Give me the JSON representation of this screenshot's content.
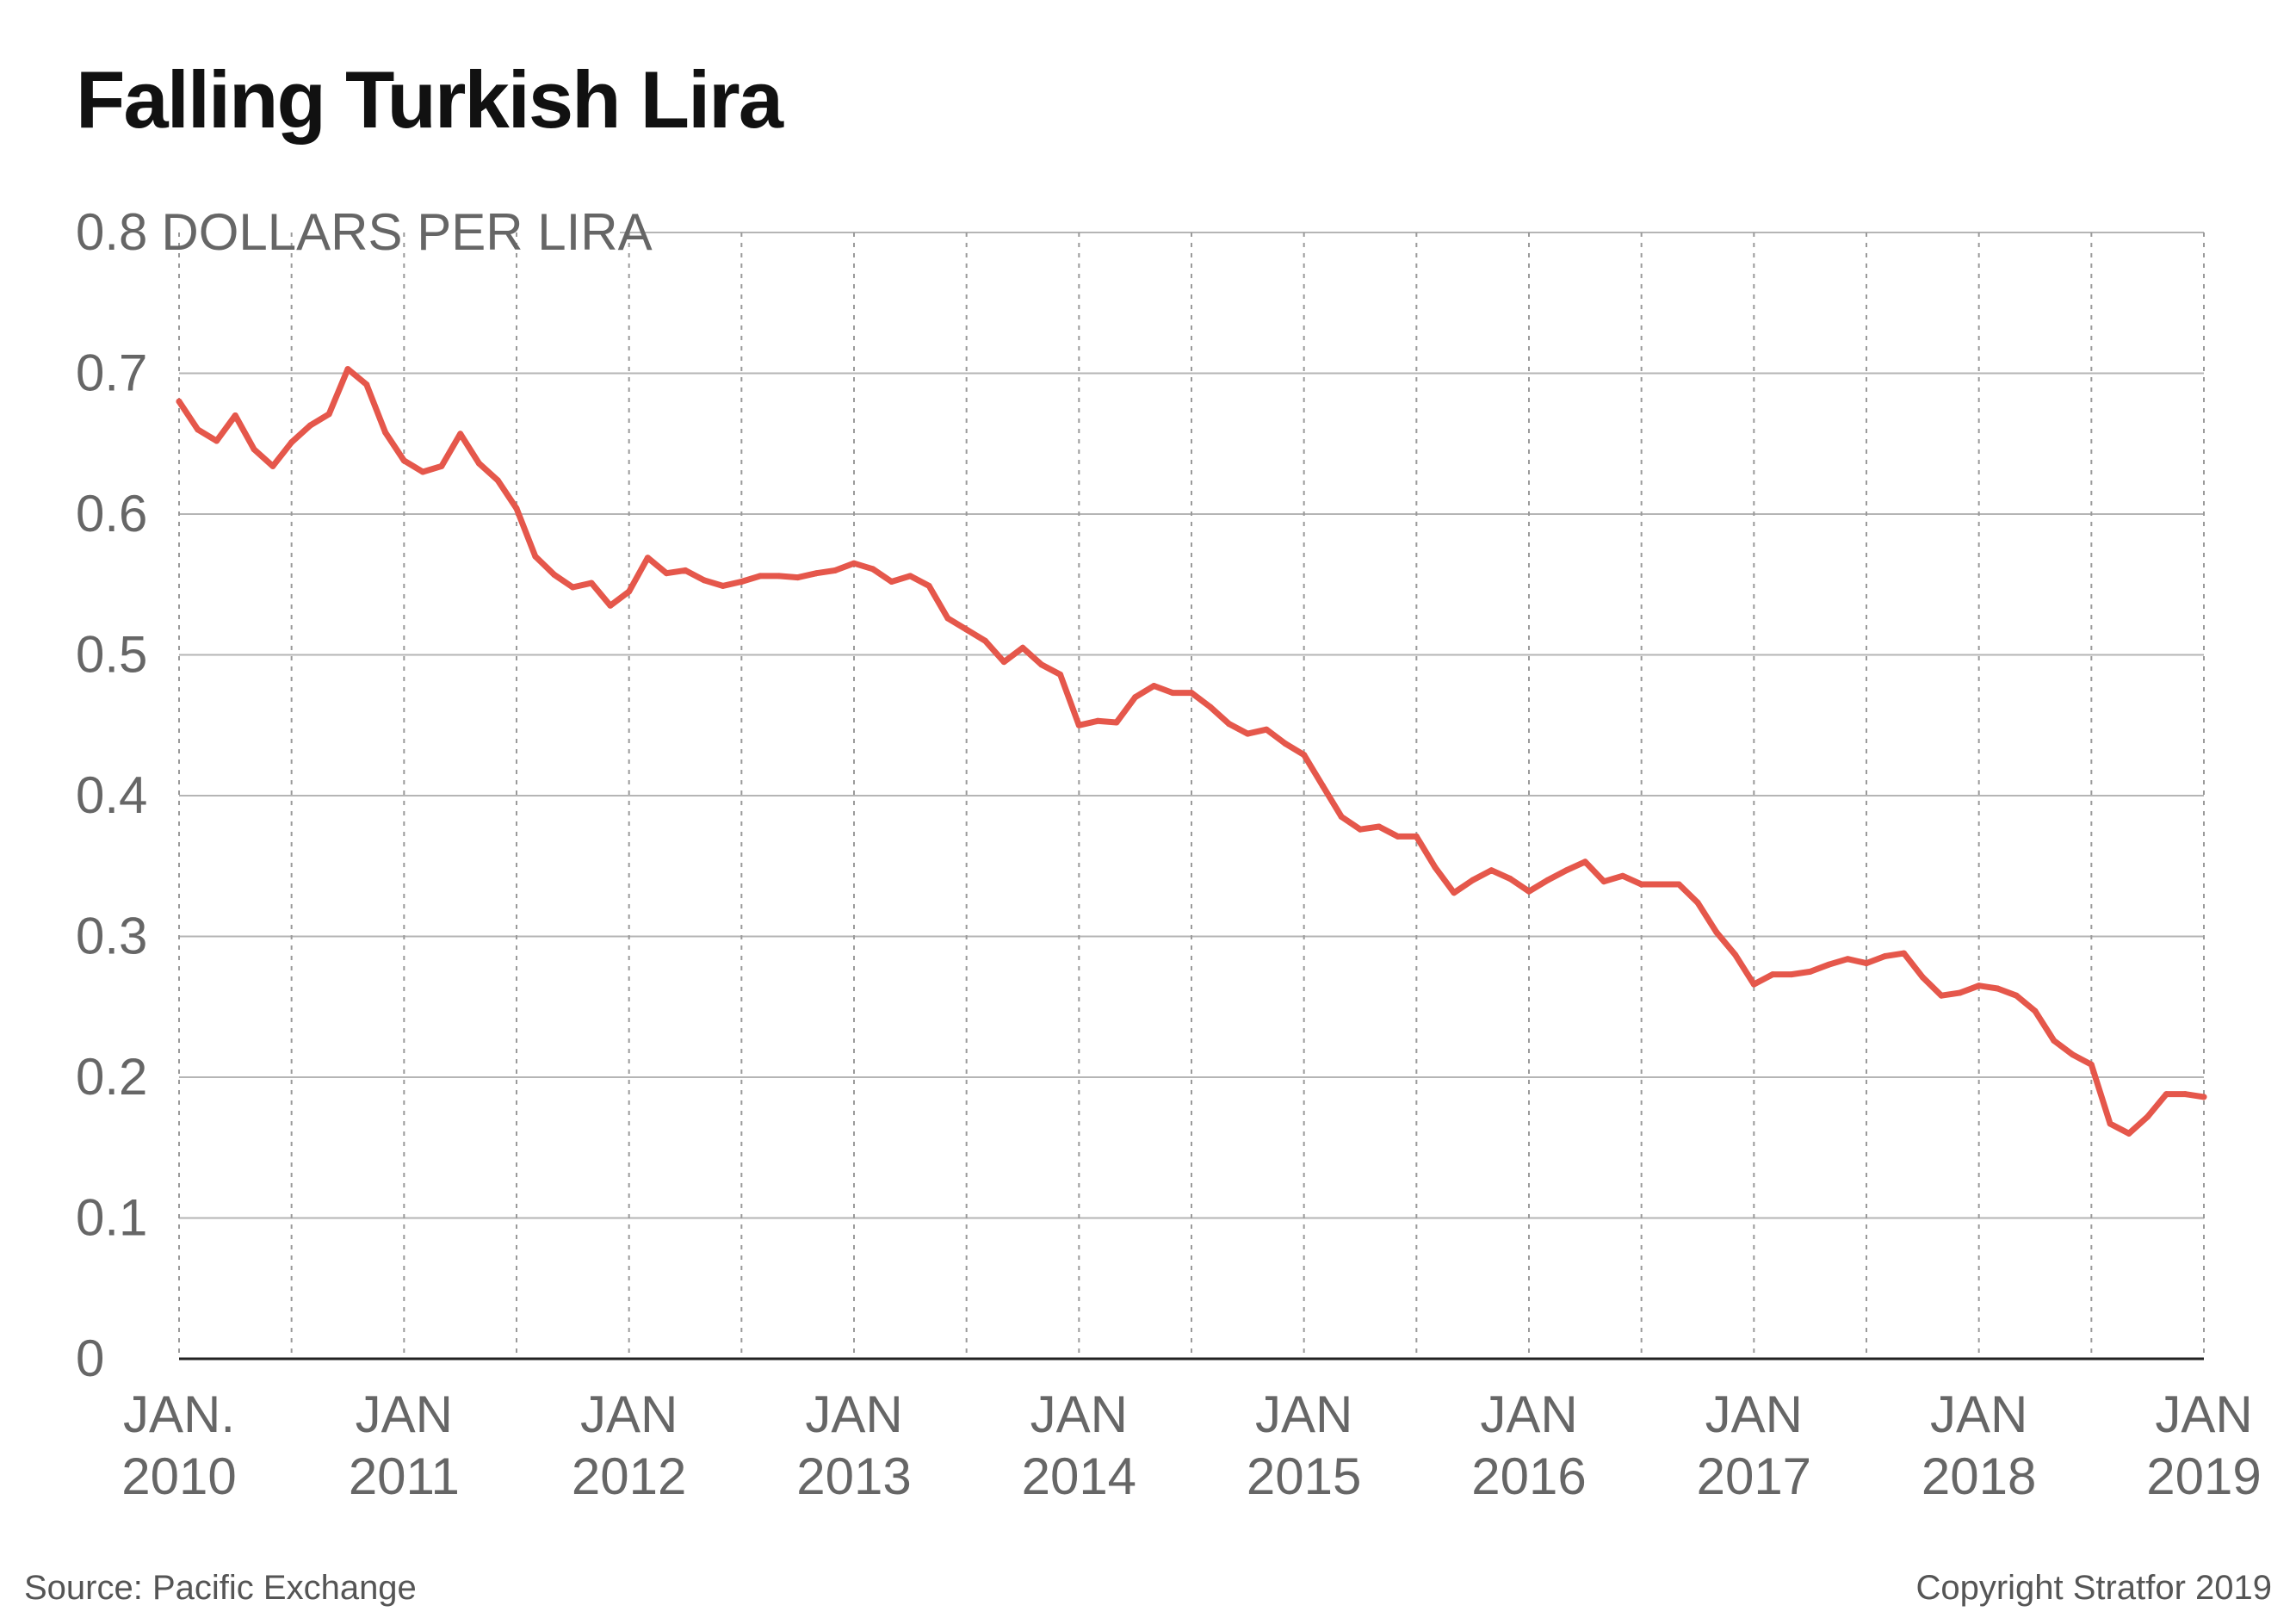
{
  "chart_data": {
    "type": "line",
    "title": "Falling Turkish Lira",
    "y_unit_label": "DOLLARS PER LIRA",
    "ylim": [
      0,
      0.8
    ],
    "yticks": [
      0,
      0.1,
      0.2,
      0.3,
      0.4,
      0.5,
      0.6,
      0.7,
      0.8
    ],
    "ytick_labels": [
      "0",
      "0.1",
      "0.2",
      "0.3",
      "0.4",
      "0.5",
      "0.6",
      "0.7",
      "0.8"
    ],
    "xlim": [
      "2010-01",
      "2019-01"
    ],
    "x_major_labels": [
      {
        "date": "2010-01",
        "line1": "JAN.",
        "line2": "2010"
      },
      {
        "date": "2011-01",
        "line1": "JAN",
        "line2": "2011"
      },
      {
        "date": "2012-01",
        "line1": "JAN",
        "line2": "2012"
      },
      {
        "date": "2013-01",
        "line1": "JAN",
        "line2": "2013"
      },
      {
        "date": "2014-01",
        "line1": "JAN",
        "line2": "2014"
      },
      {
        "date": "2015-01",
        "line1": "JAN",
        "line2": "2015"
      },
      {
        "date": "2016-01",
        "line1": "JAN",
        "line2": "2016"
      },
      {
        "date": "2017-01",
        "line1": "JAN",
        "line2": "2017"
      },
      {
        "date": "2018-01",
        "line1": "JAN",
        "line2": "2018"
      },
      {
        "date": "2019-01",
        "line1": "JAN",
        "line2": "2019"
      }
    ],
    "x_minor_gridlines": [
      "2010-07",
      "2011-07",
      "2012-07",
      "2013-07",
      "2014-07",
      "2015-07",
      "2016-07",
      "2017-07",
      "2018-07"
    ],
    "grid": {
      "horizontal": true,
      "vertical": "dotted"
    },
    "series": [
      {
        "color": "#e5574b",
        "x": [
          "2010-01",
          "2010-02",
          "2010-03",
          "2010-04",
          "2010-05",
          "2010-06",
          "2010-07",
          "2010-08",
          "2010-09",
          "2010-10",
          "2010-11",
          "2010-12",
          "2011-01",
          "2011-02",
          "2011-03",
          "2011-04",
          "2011-05",
          "2011-06",
          "2011-07",
          "2011-08",
          "2011-09",
          "2011-10",
          "2011-11",
          "2011-12",
          "2012-01",
          "2012-02",
          "2012-03",
          "2012-04",
          "2012-05",
          "2012-06",
          "2012-07",
          "2012-08",
          "2012-09",
          "2012-10",
          "2012-11",
          "2012-12",
          "2013-01",
          "2013-02",
          "2013-03",
          "2013-04",
          "2013-05",
          "2013-06",
          "2013-07",
          "2013-08",
          "2013-09",
          "2013-10",
          "2013-11",
          "2013-12",
          "2014-01",
          "2014-02",
          "2014-03",
          "2014-04",
          "2014-05",
          "2014-06",
          "2014-07",
          "2014-08",
          "2014-09",
          "2014-10",
          "2014-11",
          "2014-12",
          "2015-01",
          "2015-02",
          "2015-03",
          "2015-04",
          "2015-05",
          "2015-06",
          "2015-07",
          "2015-08",
          "2015-09",
          "2015-10",
          "2015-11",
          "2015-12",
          "2016-01",
          "2016-02",
          "2016-03",
          "2016-04",
          "2016-05",
          "2016-06",
          "2016-07",
          "2016-08",
          "2016-09",
          "2016-10",
          "2016-11",
          "2016-12",
          "2017-01",
          "2017-02",
          "2017-03",
          "2017-04",
          "2017-05",
          "2017-06",
          "2017-07",
          "2017-08",
          "2017-09",
          "2017-10",
          "2017-11",
          "2017-12",
          "2018-01",
          "2018-02",
          "2018-03",
          "2018-04",
          "2018-05",
          "2018-06",
          "2018-07",
          "2018-08",
          "2018-09",
          "2018-10",
          "2018-11",
          "2018-12",
          "2019-01"
        ],
        "values": [
          0.68,
          0.66,
          0.652,
          0.67,
          0.646,
          0.634,
          0.651,
          0.663,
          0.671,
          0.703,
          0.692,
          0.658,
          0.638,
          0.63,
          0.634,
          0.657,
          0.636,
          0.624,
          0.604,
          0.57,
          0.557,
          0.548,
          0.551,
          0.535,
          0.545,
          0.569,
          0.558,
          0.56,
          0.553,
          0.549,
          0.552,
          0.556,
          0.556,
          0.555,
          0.558,
          0.56,
          0.565,
          0.561,
          0.552,
          0.556,
          0.549,
          0.526,
          0.518,
          0.51,
          0.495,
          0.505,
          0.493,
          0.486,
          0.45,
          0.453,
          0.452,
          0.47,
          0.478,
          0.473,
          0.473,
          0.463,
          0.451,
          0.444,
          0.447,
          0.437,
          0.429,
          0.407,
          0.385,
          0.376,
          0.378,
          0.371,
          0.371,
          0.349,
          0.331,
          0.34,
          0.347,
          0.341,
          0.332,
          0.34,
          0.347,
          0.353,
          0.339,
          0.343,
          0.337,
          0.337,
          0.337,
          0.324,
          0.303,
          0.287,
          0.266,
          0.273,
          0.273,
          0.275,
          0.28,
          0.284,
          0.281,
          0.286,
          0.288,
          0.271,
          0.258,
          0.26,
          0.265,
          0.263,
          0.258,
          0.247,
          0.226,
          0.216,
          0.209,
          0.167,
          0.16,
          0.172,
          0.188,
          0.188,
          0.186
        ]
      }
    ]
  },
  "footer": {
    "source": "Source: Pacific Exchange",
    "copyright": "Copyright Stratfor 2019"
  }
}
